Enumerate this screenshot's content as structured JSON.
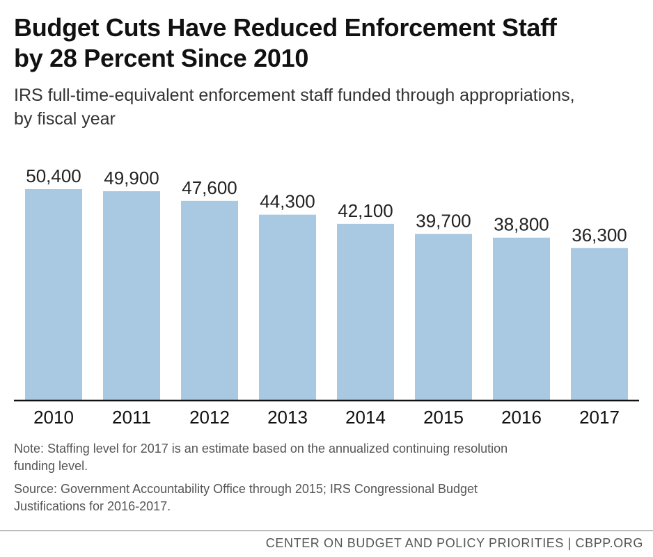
{
  "title": {
    "line1": "Budget Cuts Have Reduced Enforcement Staff",
    "line2": "by 28 Percent Since 2010"
  },
  "subtitle": {
    "line1": "IRS full-time-equivalent enforcement staff funded through appropriations,",
    "line2": "by fiscal year"
  },
  "chart_data": {
    "type": "bar",
    "title": "Budget Cuts Have Reduced Enforcement Staff by 28 Percent Since 2010",
    "subtitle": "IRS full-time-equivalent enforcement staff funded through appropriations, by fiscal year",
    "categories": [
      "2010",
      "2011",
      "2012",
      "2013",
      "2014",
      "2015",
      "2016",
      "2017"
    ],
    "values": [
      50400,
      49900,
      47600,
      44300,
      42100,
      39700,
      38800,
      36300
    ],
    "value_labels": [
      "50,400",
      "49,900",
      "47,600",
      "44,300",
      "42,100",
      "39,700",
      "38,800",
      "36,300"
    ],
    "xlabel": "",
    "ylabel": "",
    "ylim": [
      0,
      50400
    ],
    "grid": false,
    "legend": "none",
    "bar_color": "#a9c8e1",
    "axis_color": "#111111"
  },
  "notes": {
    "note_line1": "Note: Staffing level for 2017 is an estimate based on the annualized continuing resolution",
    "note_line2": "funding level.",
    "source_line1": "Source: Government Accountability Office through 2015; IRS Congressional Budget",
    "source_line2": "Justifications for 2016-2017."
  },
  "footer": {
    "credit": "CENTER ON BUDGET AND POLICY PRIORITIES | CBPP.ORG"
  }
}
